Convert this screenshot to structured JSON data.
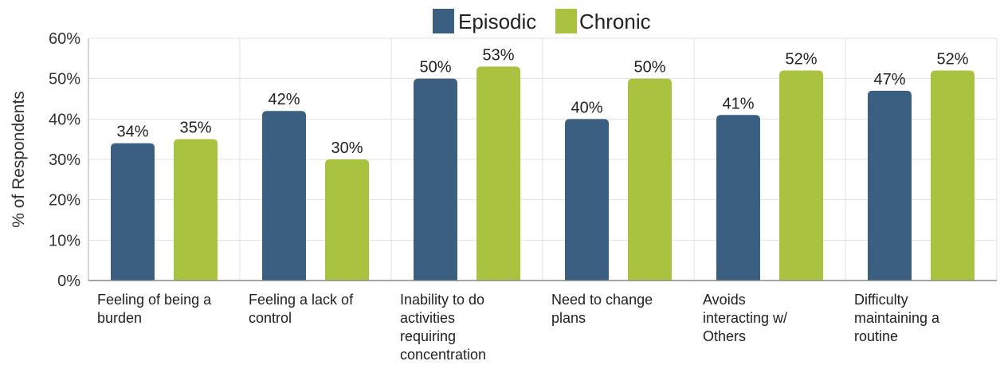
{
  "chart_data": {
    "type": "bar",
    "title": "",
    "xlabel": "",
    "ylabel": "% of Respondents",
    "ylim": [
      0,
      60
    ],
    "yticks": [
      "0%",
      "10%",
      "20%",
      "30%",
      "40%",
      "50%",
      "60%"
    ],
    "grid": true,
    "legend_position": "top-center",
    "categories": [
      [
        "Feeling of being a",
        "burden"
      ],
      [
        "Feeling a lack of",
        "control"
      ],
      [
        "Inability to do",
        "activities",
        "requiring",
        "concentration"
      ],
      [
        "Need to change",
        "plans"
      ],
      [
        "Avoids",
        "interacting w/",
        "Others"
      ],
      [
        "Difficulty",
        "maintaining a",
        "routine"
      ]
    ],
    "series": [
      {
        "name": "Episodic",
        "color": "#3b5f80",
        "values": [
          34,
          42,
          50,
          40,
          41,
          47
        ],
        "labels": [
          "34%",
          "42%",
          "50%",
          "40%",
          "41%",
          "47%"
        ]
      },
      {
        "name": "Chronic",
        "color": "#a9c23f",
        "values": [
          35,
          30,
          53,
          50,
          52,
          52
        ],
        "labels": [
          "35%",
          "30%",
          "53%",
          "50%",
          "52%",
          "52%"
        ]
      }
    ]
  }
}
